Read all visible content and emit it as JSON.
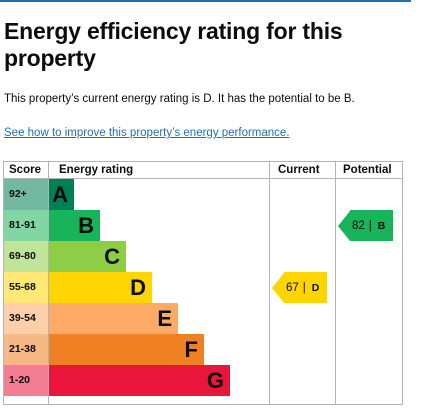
{
  "page": {
    "title": "Energy efficiency rating for this property",
    "summary": "This property’s current energy rating is D. It has the potential to be B.",
    "improve_link": "See how to improve this property’s energy performance."
  },
  "table": {
    "headers": {
      "score": "Score",
      "rating": "Energy rating",
      "current": "Current",
      "potential": "Potential"
    },
    "bands": [
      {
        "score": "92+",
        "letter": "A",
        "color": "#008054"
      },
      {
        "score": "81-91",
        "letter": "B",
        "color": "#19b459"
      },
      {
        "score": "69-80",
        "letter": "C",
        "color": "#8dce46"
      },
      {
        "score": "55-68",
        "letter": "D",
        "color": "#ffd500"
      },
      {
        "score": "39-54",
        "letter": "E",
        "color": "#fcaa65"
      },
      {
        "score": "21-38",
        "letter": "F",
        "color": "#ef8023"
      },
      {
        "score": "1-20",
        "letter": "G",
        "color": "#e9153b"
      }
    ],
    "current": {
      "value": "67",
      "separator": "|",
      "letter": "D",
      "color": "#ffd500"
    },
    "potential": {
      "value": "82",
      "separator": "|",
      "letter": "B",
      "color": "#19b459"
    }
  }
}
